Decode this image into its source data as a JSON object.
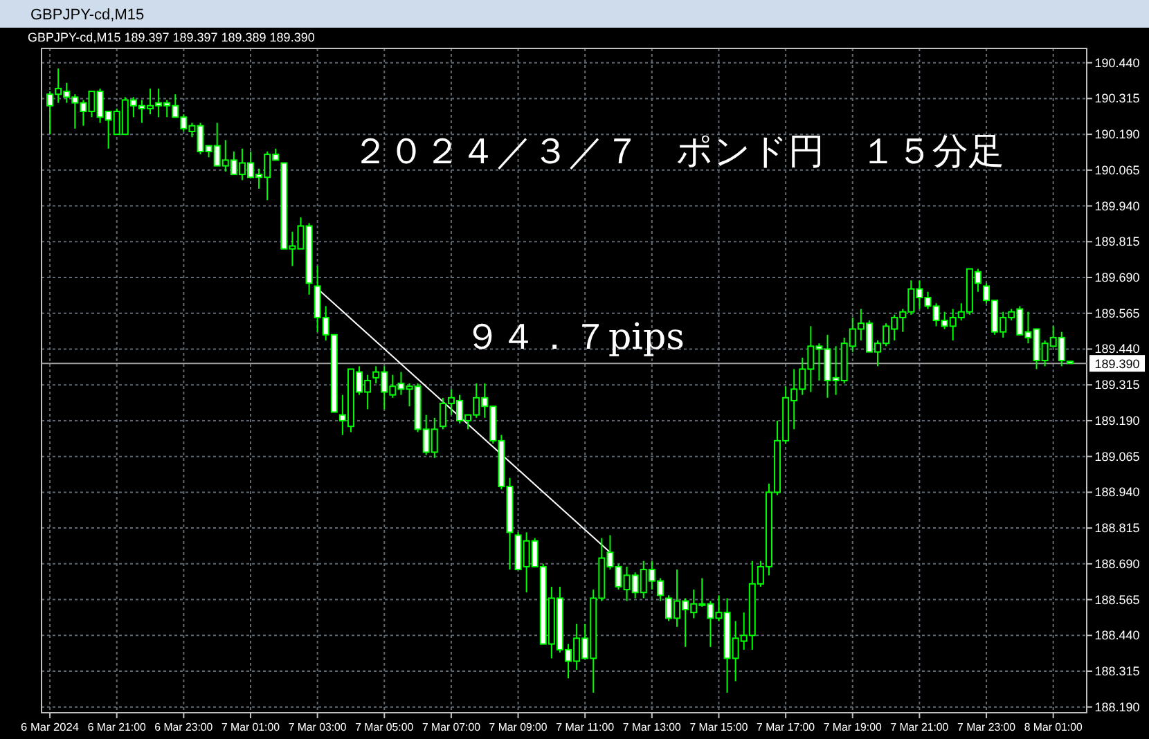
{
  "chart_data": {
    "type": "candlestick",
    "title": "２０２４／３／７　ポンド円　１５分足",
    "subtitle": "GBPJPY-cd,M15  189.397 189.397 189.389 189.390",
    "annotations": [
      "GBPJPY-cd,M15",
      "９４．７pips"
    ],
    "color": "#00ff00",
    "x": [
      "2024-03-06T19:00",
      "2024-03-06T19:15",
      "2024-03-06T19:30",
      "2024-03-06T19:45",
      "2024-03-06T20:00",
      "2024-03-06T20:15",
      "2024-03-06T20:30",
      "2024-03-06T20:45",
      "2024-03-06T21:00",
      "2024-03-06T21:15",
      "2024-03-06T21:30",
      "2024-03-06T21:45",
      "2024-03-06T22:00",
      "2024-03-06T22:15",
      "2024-03-06T22:30",
      "2024-03-06T22:45",
      "2024-03-06T23:00",
      "2024-03-06T23:15",
      "2024-03-06T23:30",
      "2024-03-06T23:45",
      "2024-03-07T00:00",
      "2024-03-07T00:15",
      "2024-03-07T00:30",
      "2024-03-07T00:45",
      "2024-03-07T01:00",
      "2024-03-07T01:15",
      "2024-03-07T01:30",
      "2024-03-07T01:45",
      "2024-03-07T02:00",
      "2024-03-07T02:15",
      "2024-03-07T02:30",
      "2024-03-07T02:45",
      "2024-03-07T03:00",
      "2024-03-07T03:15",
      "2024-03-07T03:30",
      "2024-03-07T03:45",
      "2024-03-07T04:00",
      "2024-03-07T04:15",
      "2024-03-07T04:30",
      "2024-03-07T04:45",
      "2024-03-07T05:00",
      "2024-03-07T05:15",
      "2024-03-07T05:30",
      "2024-03-07T05:45",
      "2024-03-07T06:00",
      "2024-03-07T06:15",
      "2024-03-07T06:30",
      "2024-03-07T06:45",
      "2024-03-07T07:00",
      "2024-03-07T07:15",
      "2024-03-07T07:30",
      "2024-03-07T07:45",
      "2024-03-07T08:00",
      "2024-03-07T08:15",
      "2024-03-07T08:30",
      "2024-03-07T08:45",
      "2024-03-07T09:00",
      "2024-03-07T09:15",
      "2024-03-07T09:30",
      "2024-03-07T09:45",
      "2024-03-07T10:00",
      "2024-03-07T10:15",
      "2024-03-07T10:30",
      "2024-03-07T10:45",
      "2024-03-07T11:00",
      "2024-03-07T11:15",
      "2024-03-07T11:30",
      "2024-03-07T11:45",
      "2024-03-07T12:00",
      "2024-03-07T12:15",
      "2024-03-07T12:30",
      "2024-03-07T12:45",
      "2024-03-07T13:00",
      "2024-03-07T13:15",
      "2024-03-07T13:30",
      "2024-03-07T13:45",
      "2024-03-07T14:00",
      "2024-03-07T14:15",
      "2024-03-07T14:30",
      "2024-03-07T14:45",
      "2024-03-07T15:00",
      "2024-03-07T15:15",
      "2024-03-07T15:30",
      "2024-03-07T15:45",
      "2024-03-07T16:00",
      "2024-03-07T16:15",
      "2024-03-07T16:30",
      "2024-03-07T16:45",
      "2024-03-07T17:00",
      "2024-03-07T17:15",
      "2024-03-07T17:30",
      "2024-03-07T17:45",
      "2024-03-07T18:00",
      "2024-03-07T18:15",
      "2024-03-07T18:30",
      "2024-03-07T18:45",
      "2024-03-07T19:00",
      "2024-03-07T19:15",
      "2024-03-07T19:30",
      "2024-03-07T19:45",
      "2024-03-07T20:00",
      "2024-03-07T20:15",
      "2024-03-07T20:30",
      "2024-03-07T20:45",
      "2024-03-07T21:00",
      "2024-03-07T21:15",
      "2024-03-07T21:30",
      "2024-03-07T21:45",
      "2024-03-07T22:00",
      "2024-03-07T22:15",
      "2024-03-07T22:30",
      "2024-03-07T22:45",
      "2024-03-07T23:00",
      "2024-03-07T23:15",
      "2024-03-07T23:30",
      "2024-03-07T23:45",
      "2024-03-08T00:00",
      "2024-03-08T00:15",
      "2024-03-08T00:30",
      "2024-03-08T00:45",
      "2024-03-08T01:00",
      "2024-03-08T01:15",
      "2024-03-08T01:30"
    ],
    "ohlc": [
      [
        190.33,
        190.34,
        190.19,
        190.29
      ],
      [
        190.33,
        190.42,
        190.3,
        190.35
      ],
      [
        190.34,
        190.37,
        190.3,
        190.32
      ],
      [
        190.32,
        190.33,
        190.21,
        190.3
      ],
      [
        190.3,
        190.31,
        190.22,
        190.27
      ],
      [
        190.27,
        190.34,
        190.25,
        190.34
      ],
      [
        190.34,
        190.35,
        190.23,
        190.25
      ],
      [
        190.27,
        190.27,
        190.14,
        190.24
      ],
      [
        190.19,
        190.28,
        190.19,
        190.27
      ],
      [
        190.19,
        190.32,
        190.19,
        190.31
      ],
      [
        190.31,
        190.32,
        190.25,
        190.29
      ],
      [
        190.29,
        190.31,
        190.23,
        190.28
      ],
      [
        190.28,
        190.35,
        190.26,
        190.29
      ],
      [
        190.3,
        190.35,
        190.25,
        190.29
      ],
      [
        190.3,
        190.31,
        190.25,
        190.29
      ],
      [
        190.29,
        190.33,
        190.25,
        190.25
      ],
      [
        190.25,
        190.26,
        190.2,
        190.21
      ],
      [
        190.2,
        190.23,
        190.18,
        190.22
      ],
      [
        190.22,
        190.23,
        190.12,
        190.13
      ],
      [
        190.15,
        190.15,
        190.11,
        190.13
      ],
      [
        190.15,
        190.23,
        190.08,
        190.08
      ],
      [
        190.08,
        190.17,
        190.06,
        190.1
      ],
      [
        190.1,
        190.13,
        190.05,
        190.05
      ],
      [
        190.05,
        190.14,
        190.03,
        190.09
      ],
      [
        190.09,
        190.13,
        190.04,
        190.04
      ],
      [
        190.05,
        190.07,
        190.0,
        190.04
      ],
      [
        190.04,
        190.13,
        189.96,
        190.12
      ],
      [
        190.12,
        190.14,
        190.1,
        190.1
      ],
      [
        190.09,
        190.09,
        189.79,
        189.79
      ],
      [
        189.79,
        189.85,
        189.73,
        189.8
      ],
      [
        189.79,
        189.9,
        189.79,
        189.87
      ],
      [
        189.87,
        189.88,
        189.63,
        189.67
      ],
      [
        189.66,
        189.73,
        189.5,
        189.55
      ],
      [
        189.55,
        189.59,
        189.47,
        189.49
      ],
      [
        189.49,
        189.49,
        189.22,
        189.22
      ],
      [
        189.21,
        189.28,
        189.14,
        189.19
      ],
      [
        189.17,
        189.37,
        189.15,
        189.37
      ],
      [
        189.36,
        189.38,
        189.28,
        189.29
      ],
      [
        189.29,
        189.35,
        189.23,
        189.33
      ],
      [
        189.34,
        189.38,
        189.32,
        189.36
      ],
      [
        189.36,
        189.38,
        189.23,
        189.29
      ],
      [
        189.28,
        189.35,
        189.27,
        189.31
      ],
      [
        189.32,
        189.36,
        189.28,
        189.3
      ],
      [
        189.3,
        189.32,
        189.24,
        189.31
      ],
      [
        189.31,
        189.32,
        189.15,
        189.16
      ],
      [
        189.16,
        189.21,
        189.07,
        189.08
      ],
      [
        189.08,
        189.2,
        189.06,
        189.16
      ],
      [
        189.17,
        189.27,
        189.16,
        189.25
      ],
      [
        189.25,
        189.3,
        189.21,
        189.27
      ],
      [
        189.26,
        189.28,
        189.18,
        189.19
      ],
      [
        189.19,
        189.21,
        189.16,
        189.21
      ],
      [
        189.21,
        189.32,
        189.2,
        189.27
      ],
      [
        189.27,
        189.32,
        189.2,
        189.24
      ],
      [
        189.24,
        189.24,
        189.11,
        189.12
      ],
      [
        189.12,
        189.14,
        188.95,
        188.96
      ],
      [
        188.96,
        188.99,
        188.67,
        188.8
      ],
      [
        188.79,
        188.8,
        188.67,
        188.67
      ],
      [
        188.68,
        188.8,
        188.59,
        188.77
      ],
      [
        188.77,
        188.78,
        188.68,
        188.68
      ],
      [
        188.68,
        188.69,
        188.41,
        188.41
      ],
      [
        188.41,
        188.61,
        188.36,
        188.57
      ],
      [
        188.57,
        188.61,
        188.38,
        188.39
      ],
      [
        188.39,
        188.41,
        188.29,
        188.35
      ],
      [
        188.35,
        188.48,
        188.32,
        188.43
      ],
      [
        188.43,
        188.48,
        188.36,
        188.36
      ],
      [
        188.36,
        188.6,
        188.24,
        188.57
      ],
      [
        188.57,
        188.78,
        188.56,
        188.71
      ],
      [
        188.73,
        188.79,
        188.67,
        188.68
      ],
      [
        188.68,
        188.69,
        188.6,
        188.61
      ],
      [
        188.6,
        188.68,
        188.56,
        188.65
      ],
      [
        188.65,
        188.66,
        188.57,
        188.59
      ],
      [
        188.59,
        188.7,
        188.57,
        188.67
      ],
      [
        188.67,
        188.7,
        188.6,
        188.63
      ],
      [
        188.63,
        188.64,
        188.56,
        188.58
      ],
      [
        188.57,
        188.58,
        188.49,
        188.5
      ],
      [
        188.5,
        188.67,
        188.47,
        188.56
      ],
      [
        188.56,
        188.57,
        188.4,
        188.53
      ],
      [
        188.52,
        188.6,
        188.5,
        188.55
      ],
      [
        188.55,
        188.64,
        188.54,
        188.55
      ],
      [
        188.55,
        188.56,
        188.4,
        188.5
      ],
      [
        188.5,
        188.58,
        188.49,
        188.52
      ],
      [
        188.52,
        188.57,
        188.24,
        188.36
      ],
      [
        188.36,
        188.49,
        188.28,
        188.43
      ],
      [
        188.42,
        188.52,
        188.39,
        188.44
      ],
      [
        188.44,
        188.7,
        188.39,
        188.62
      ],
      [
        188.62,
        188.7,
        188.61,
        188.68
      ],
      [
        188.68,
        188.97,
        188.65,
        188.94
      ],
      [
        188.94,
        189.19,
        188.93,
        189.12
      ],
      [
        189.12,
        189.31,
        189.11,
        189.27
      ],
      [
        189.26,
        189.37,
        189.16,
        189.3
      ],
      [
        189.3,
        189.41,
        189.28,
        189.37
      ],
      [
        189.37,
        189.52,
        189.29,
        189.45
      ],
      [
        189.45,
        189.46,
        189.33,
        189.44
      ],
      [
        189.44,
        189.49,
        189.27,
        189.33
      ],
      [
        189.34,
        189.45,
        189.28,
        189.33
      ],
      [
        189.33,
        189.48,
        189.32,
        189.46
      ],
      [
        189.45,
        189.55,
        189.43,
        189.51
      ],
      [
        189.51,
        189.58,
        189.47,
        189.53
      ],
      [
        189.53,
        189.54,
        189.43,
        189.43
      ],
      [
        189.43,
        189.47,
        189.38,
        189.46
      ],
      [
        189.46,
        189.53,
        189.45,
        189.52
      ],
      [
        189.51,
        189.56,
        189.47,
        189.55
      ],
      [
        189.55,
        189.58,
        189.5,
        189.57
      ],
      [
        189.57,
        189.68,
        189.56,
        189.65
      ],
      [
        189.65,
        189.68,
        189.58,
        189.62
      ],
      [
        189.62,
        189.64,
        189.58,
        189.59
      ],
      [
        189.59,
        189.6,
        189.52,
        189.54
      ],
      [
        189.54,
        189.57,
        189.51,
        189.52
      ],
      [
        189.52,
        189.58,
        189.47,
        189.55
      ],
      [
        189.55,
        189.6,
        189.54,
        189.57
      ],
      [
        189.57,
        189.72,
        189.56,
        189.72
      ],
      [
        189.71,
        189.72,
        189.64,
        189.67
      ],
      [
        189.66,
        189.67,
        189.6,
        189.61
      ],
      [
        189.61,
        189.61,
        189.49,
        189.5
      ],
      [
        189.5,
        189.57,
        189.48,
        189.55
      ],
      [
        189.55,
        189.58,
        189.54,
        189.57
      ],
      [
        189.58,
        189.59,
        189.49,
        189.49
      ],
      [
        189.5,
        189.57,
        189.46,
        189.48
      ],
      [
        189.51,
        189.51,
        189.37,
        189.4
      ],
      [
        189.4,
        189.47,
        189.38,
        189.46
      ],
      [
        189.45,
        189.52,
        189.45,
        189.48
      ],
      [
        189.48,
        189.5,
        189.38,
        189.4
      ],
      [
        189.397,
        189.397,
        189.389,
        189.39
      ]
    ],
    "series": [
      {
        "type": "line",
        "color": "#ffffff",
        "x": [
          "2024-03-07T02:55",
          "2024-03-07T11:45"
        ],
        "values": [
          189.66,
          188.73
        ]
      }
    ],
    "ref_lines": [
      {
        "axis": "y",
        "value": 189.39,
        "label": "189.390",
        "color": "#a0a0a0"
      }
    ],
    "xlim": [
      "2024-03-06T18:45",
      "2024-03-08T02:00"
    ],
    "xticks": [
      {
        "value": "2024-03-06T19:00",
        "label": "6 Mar 2024"
      },
      {
        "value": "2024-03-06T21:00",
        "label": "6 Mar 21:00"
      },
      {
        "value": "2024-03-06T23:00",
        "label": "6 Mar 23:00"
      },
      {
        "value": "2024-03-07T01:00",
        "label": "7 Mar 01:00"
      },
      {
        "value": "2024-03-07T03:00",
        "label": "7 Mar 03:00"
      },
      {
        "value": "2024-03-07T05:00",
        "label": "7 Mar 05:00"
      },
      {
        "value": "2024-03-07T07:00",
        "label": "7 Mar 07:00"
      },
      {
        "value": "2024-03-07T09:00",
        "label": "7 Mar 09:00"
      },
      {
        "value": "2024-03-07T11:00",
        "label": "7 Mar 11:00"
      },
      {
        "value": "2024-03-07T13:00",
        "label": "7 Mar 13:00"
      },
      {
        "value": "2024-03-07T15:00",
        "label": "7 Mar 15:00"
      },
      {
        "value": "2024-03-07T17:00",
        "label": "7 Mar 17:00"
      },
      {
        "value": "2024-03-07T19:00",
        "label": "7 Mar 19:00"
      },
      {
        "value": "2024-03-07T21:00",
        "label": "7 Mar 21:00"
      },
      {
        "value": "2024-03-07T23:00",
        "label": "7 Mar 23:00"
      },
      {
        "value": "2024-03-08T01:00",
        "label": "8 Mar 01:00"
      }
    ],
    "ylim": [
      188.17,
      190.49
    ],
    "yticks": [
      {
        "value": 190.44,
        "label": "190.440"
      },
      {
        "value": 190.315,
        "label": "190.315"
      },
      {
        "value": 190.19,
        "label": "190.190"
      },
      {
        "value": 190.065,
        "label": "190.065"
      },
      {
        "value": 189.94,
        "label": "189.940"
      },
      {
        "value": 189.815,
        "label": "189.815"
      },
      {
        "value": 189.69,
        "label": "189.690"
      },
      {
        "value": 189.565,
        "label": "189.565"
      },
      {
        "value": 189.44,
        "label": "189.440"
      },
      {
        "value": 189.315,
        "label": "189.315"
      },
      {
        "value": 189.19,
        "label": "189.190"
      },
      {
        "value": 189.065,
        "label": "189.065"
      },
      {
        "value": 188.94,
        "label": "188.940"
      },
      {
        "value": 188.815,
        "label": "188.815"
      },
      {
        "value": 188.69,
        "label": "188.690"
      },
      {
        "value": 188.565,
        "label": "188.565"
      },
      {
        "value": 188.44,
        "label": "188.440"
      },
      {
        "value": 188.315,
        "label": "188.315"
      },
      {
        "value": 188.19,
        "label": "188.190"
      }
    ],
    "grid": true
  }
}
